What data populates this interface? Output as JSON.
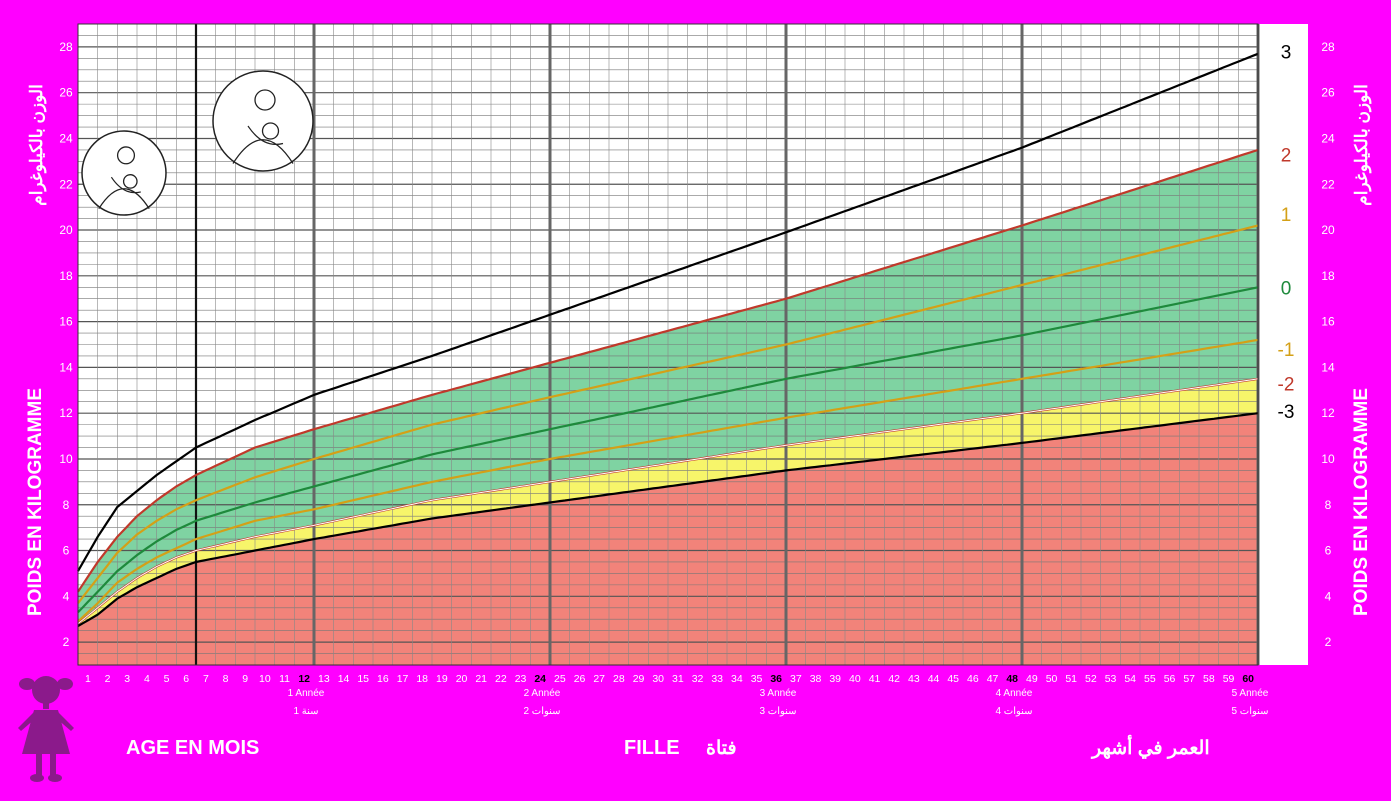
{
  "labels": {
    "y_left_fr": "POIDS EN KILOGRAMME",
    "y_left_ar": "الوزن بالكيلوغرام",
    "y_right_fr": "POIDS EN KILOGRAMME",
    "y_right_ar": "الوزن بالكيلوغرام",
    "x_fr": "AGE EN MOIS",
    "sex_fr": "FILLE",
    "sex_ar": "فتاة",
    "x_ar": "العمر في أشهر"
  },
  "colors": {
    "background": "#ff00ff",
    "red_zone": "#f2837a",
    "yellow_zone": "#f7f56a",
    "green_zone": "#7fd3a2",
    "line_3": "#000000",
    "line_2": "#c0392b",
    "line_1": "#d4a017",
    "line_0": "#1e8a3c",
    "line_m1": "#d4a017",
    "line_m2": "#c0392b",
    "line_m3": "#000000"
  },
  "chart_data": {
    "type": "line",
    "xlim": [
      0,
      60
    ],
    "ylim": [
      1,
      29
    ],
    "y_ticks": [
      2,
      4,
      6,
      8,
      10,
      12,
      14,
      16,
      18,
      20,
      22,
      24,
      26,
      28
    ],
    "x_ticks": [
      1,
      2,
      3,
      4,
      5,
      6,
      7,
      8,
      9,
      10,
      11,
      12,
      13,
      14,
      15,
      16,
      17,
      18,
      19,
      20,
      21,
      22,
      23,
      24,
      25,
      26,
      27,
      28,
      29,
      30,
      31,
      32,
      33,
      34,
      35,
      36,
      37,
      38,
      39,
      40,
      41,
      42,
      43,
      44,
      45,
      46,
      47,
      48,
      49,
      50,
      51,
      52,
      53,
      54,
      55,
      56,
      57,
      58,
      59,
      60
    ],
    "year_labels": [
      {
        "month": 12,
        "fr": "1 Année",
        "ar": "1 سنة"
      },
      {
        "month": 24,
        "fr": "2 Année",
        "ar": "2 سنوات"
      },
      {
        "month": 36,
        "fr": "3 Année",
        "ar": "3 سنوات"
      },
      {
        "month": 48,
        "fr": "4 Année",
        "ar": "4 سنوات"
      },
      {
        "month": 60,
        "fr": "5 Année",
        "ar": "5 سنوات"
      }
    ],
    "x": [
      0,
      1,
      2,
      3,
      4,
      5,
      6,
      9,
      12,
      18,
      24,
      36,
      48,
      60
    ],
    "series": [
      {
        "name": "3",
        "values": [
          5.1,
          6.6,
          7.9,
          8.6,
          9.3,
          9.9,
          10.5,
          11.7,
          12.8,
          14.5,
          16.3,
          19.9,
          23.6,
          27.7
        ]
      },
      {
        "name": "2",
        "values": [
          4.2,
          5.5,
          6.6,
          7.5,
          8.2,
          8.8,
          9.3,
          10.5,
          11.3,
          12.8,
          14.2,
          17.0,
          20.2,
          23.5
        ]
      },
      {
        "name": "1",
        "values": [
          3.7,
          4.8,
          5.9,
          6.7,
          7.3,
          7.8,
          8.2,
          9.2,
          10.0,
          11.5,
          12.7,
          15.0,
          17.6,
          20.2
        ]
      },
      {
        "name": "0",
        "values": [
          3.3,
          4.2,
          5.1,
          5.8,
          6.4,
          6.9,
          7.3,
          8.1,
          8.8,
          10.2,
          11.3,
          13.5,
          15.4,
          17.5
        ]
      },
      {
        "name": "-1",
        "values": [
          2.9,
          3.7,
          4.6,
          5.2,
          5.7,
          6.1,
          6.5,
          7.3,
          7.8,
          9.0,
          10.0,
          11.8,
          13.5,
          15.2
        ]
      },
      {
        "name": "-2",
        "values": [
          2.8,
          3.5,
          4.2,
          4.8,
          5.3,
          5.7,
          6.0,
          6.6,
          7.1,
          8.2,
          9.0,
          10.6,
          12.0,
          13.5
        ]
      },
      {
        "name": "-3",
        "values": [
          2.7,
          3.2,
          3.9,
          4.4,
          4.8,
          5.2,
          5.5,
          6.0,
          6.5,
          7.4,
          8.1,
          9.5,
          10.7,
          12.0
        ]
      }
    ],
    "label_values": [
      {
        "name": "3",
        "y": 27.8
      },
      {
        "name": "2",
        "y": 23.3
      },
      {
        "name": "1",
        "y": 20.7
      },
      {
        "name": "0",
        "y": 17.5
      },
      {
        "name": "-1",
        "y": 14.8
      },
      {
        "name": "-2",
        "y": 13.3
      },
      {
        "name": "-3",
        "y": 12.1
      }
    ]
  }
}
